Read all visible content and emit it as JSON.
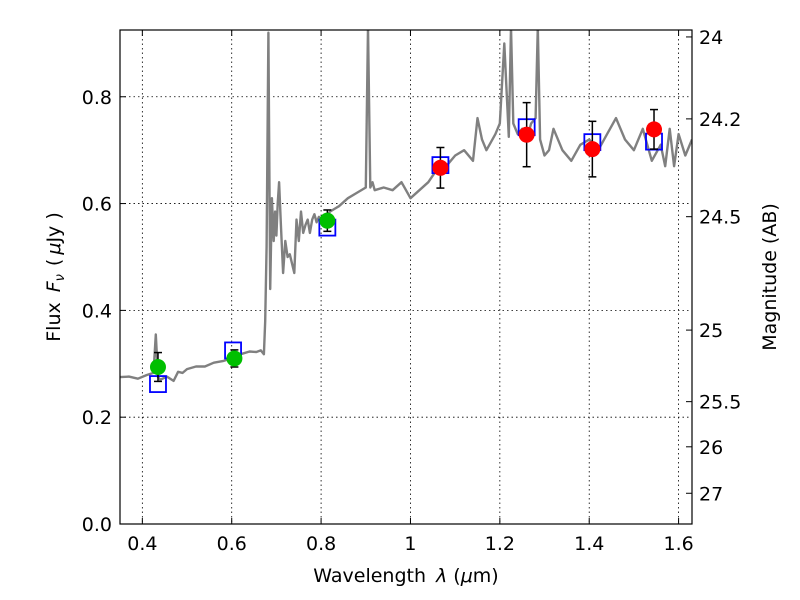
{
  "chart_data": {
    "type": "line",
    "xlabel_text": "Wavelength",
    "xlabel_symbol": "λ",
    "xlabel_unit_open": "(",
    "xlabel_unit_mu": "μ",
    "xlabel_unit_rest": "m)",
    "ylabel_text": "Flux",
    "ylabel_symbol": "F",
    "ylabel_sub": "ν",
    "ylabel_unit_open": "(",
    "ylabel_unit_mu": "μ",
    "ylabel_unit_rest": "Jy )",
    "y2label": "Magnitude (AB)",
    "xlim": [
      0.35,
      1.63
    ],
    "ylim": [
      0.0,
      0.925
    ],
    "x_ticks": [
      0.4,
      0.6,
      0.8,
      1.0,
      1.2,
      1.4,
      1.6
    ],
    "x_tick_labels": [
      "0.4",
      "0.6",
      "0.8",
      "1",
      "1.2",
      "1.4",
      "1.6"
    ],
    "y_ticks": [
      0.0,
      0.2,
      0.4,
      0.6,
      0.8
    ],
    "y_tick_labels": [
      "0.0",
      "0.2",
      "0.4",
      "0.6",
      "0.8"
    ],
    "mag_ticks": [
      {
        "mag": 24,
        "label": "24"
      },
      {
        "mag": 24.2,
        "label": "24.2"
      },
      {
        "mag": 24.5,
        "label": "24.5"
      },
      {
        "mag": 25,
        "label": "25"
      },
      {
        "mag": 25.5,
        "label": "25.5"
      },
      {
        "mag": 26,
        "label": "26"
      },
      {
        "mag": 27,
        "label": "27"
      }
    ],
    "grid": true,
    "colors": {
      "model": "#808080",
      "model_box": "#0000ff",
      "obs_optical": "#00bf00",
      "obs_nir": "#ff0000",
      "error_bar": "#000000"
    },
    "series": [
      {
        "name": "model spectrum",
        "kind": "line",
        "x": [
          0.35,
          0.37,
          0.39,
          0.41,
          0.425,
          0.43,
          0.435,
          0.44,
          0.455,
          0.47,
          0.48,
          0.49,
          0.5,
          0.52,
          0.54,
          0.56,
          0.58,
          0.6,
          0.62,
          0.64,
          0.655,
          0.665,
          0.672,
          0.675,
          0.678,
          0.682,
          0.686,
          0.69,
          0.694,
          0.697,
          0.7,
          0.703,
          0.706,
          0.71,
          0.715,
          0.72,
          0.725,
          0.73,
          0.74,
          0.745,
          0.75,
          0.755,
          0.76,
          0.765,
          0.77,
          0.775,
          0.78,
          0.785,
          0.79,
          0.795,
          0.8,
          0.81,
          0.82,
          0.83,
          0.84,
          0.86,
          0.88,
          0.9,
          0.905,
          0.91,
          0.915,
          0.92,
          0.94,
          0.96,
          0.98,
          1.0,
          1.02,
          1.04,
          1.06,
          1.08,
          1.1,
          1.12,
          1.14,
          1.15,
          1.16,
          1.17,
          1.18,
          1.19,
          1.2,
          1.21,
          1.22,
          1.225,
          1.23,
          1.24,
          1.25,
          1.26,
          1.27,
          1.28,
          1.285,
          1.29,
          1.3,
          1.31,
          1.32,
          1.34,
          1.36,
          1.38,
          1.4,
          1.42,
          1.44,
          1.46,
          1.48,
          1.5,
          1.52,
          1.54,
          1.56,
          1.57,
          1.58,
          1.59,
          1.6,
          1.615,
          1.63
        ],
        "y": [
          0.275,
          0.276,
          0.272,
          0.279,
          0.283,
          0.355,
          0.275,
          0.27,
          0.276,
          0.268,
          0.285,
          0.283,
          0.29,
          0.295,
          0.295,
          0.302,
          0.305,
          0.31,
          0.318,
          0.323,
          0.322,
          0.325,
          0.318,
          0.38,
          0.52,
          0.92,
          0.44,
          0.61,
          0.53,
          0.585,
          0.54,
          0.6,
          0.64,
          0.56,
          0.47,
          0.53,
          0.5,
          0.505,
          0.47,
          0.57,
          0.53,
          0.585,
          0.545,
          0.56,
          0.57,
          0.545,
          0.57,
          0.58,
          0.565,
          0.575,
          0.57,
          0.575,
          0.585,
          0.59,
          0.595,
          0.61,
          0.62,
          0.63,
          0.93,
          0.63,
          0.64,
          0.625,
          0.63,
          0.625,
          0.64,
          0.61,
          0.625,
          0.64,
          0.665,
          0.67,
          0.69,
          0.7,
          0.68,
          0.76,
          0.72,
          0.7,
          0.715,
          0.73,
          0.75,
          0.9,
          0.725,
          0.93,
          0.75,
          0.73,
          0.74,
          0.72,
          0.75,
          0.76,
          0.93,
          0.72,
          0.69,
          0.7,
          0.74,
          0.7,
          0.68,
          0.71,
          0.72,
          0.7,
          0.73,
          0.76,
          0.72,
          0.7,
          0.74,
          0.68,
          0.71,
          0.67,
          0.74,
          0.67,
          0.73,
          0.69,
          0.72
        ]
      },
      {
        "name": "model photometry",
        "kind": "box",
        "x": [
          0.435,
          0.603,
          0.814,
          1.067,
          1.26,
          1.407,
          1.545
        ],
        "y": [
          0.262,
          0.325,
          0.555,
          0.672,
          0.743,
          0.715,
          0.716
        ]
      },
      {
        "name": "observed optical",
        "kind": "point",
        "color_key": "obs_optical",
        "x": [
          0.435,
          0.606,
          0.814
        ],
        "y": [
          0.294,
          0.31,
          0.568
        ],
        "yerr": [
          0.027,
          0.016,
          0.02
        ]
      },
      {
        "name": "observed near-IR",
        "kind": "point",
        "color_key": "obs_nir",
        "x": [
          1.067,
          1.26,
          1.407,
          1.545
        ],
        "y": [
          0.667,
          0.729,
          0.702,
          0.739
        ],
        "yerr": [
          0.038,
          0.06,
          0.052,
          0.037
        ]
      }
    ]
  }
}
